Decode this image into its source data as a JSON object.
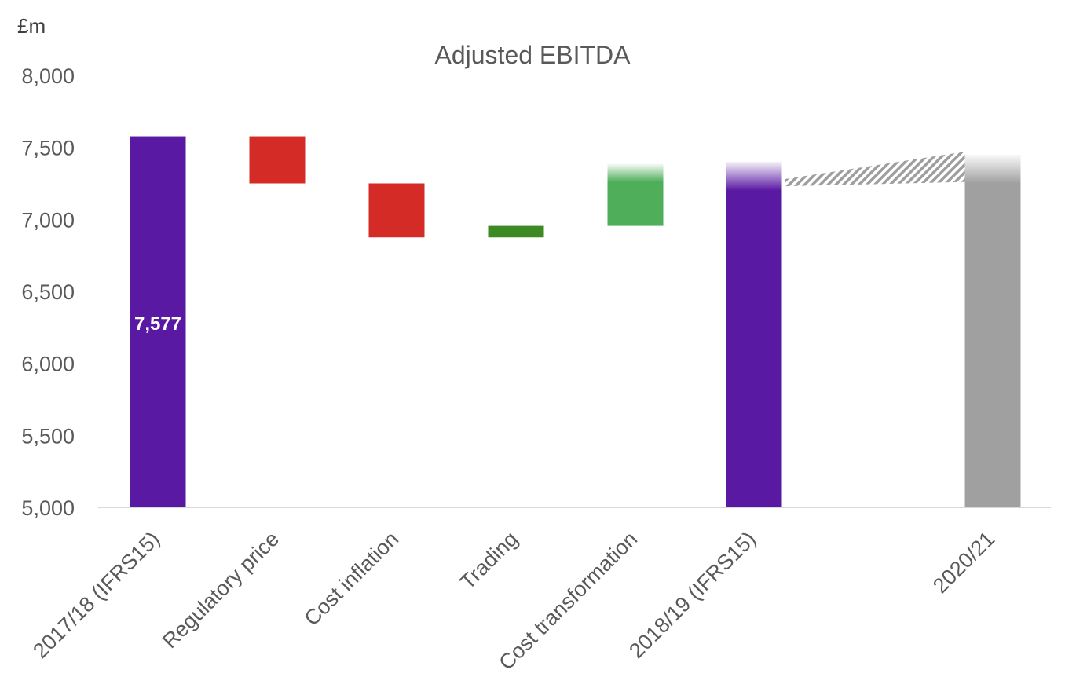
{
  "chart_data": {
    "type": "bar",
    "subtype": "waterfall",
    "title": "Adjusted EBITDA",
    "unit_label": "£m",
    "ylim": [
      5000,
      8000
    ],
    "yticks": [
      5000,
      5500,
      6000,
      6500,
      7000,
      7500,
      8000
    ],
    "ytick_labels": [
      "5,000",
      "5,500",
      "6,000",
      "6,500",
      "7,000",
      "7,500",
      "8,000"
    ],
    "grid": false,
    "bars": [
      {
        "category": "2017/18 (IFRS15)",
        "kind": "total",
        "low": 5000,
        "high": 7577,
        "color": "#5a19a2",
        "label": "7,577"
      },
      {
        "category": "Regulatory price",
        "kind": "decrease",
        "low": 7250,
        "high": 7577,
        "color": "#d52b27"
      },
      {
        "category": "Cost inflation",
        "kind": "decrease",
        "low": 6875,
        "high": 7250,
        "color": "#d52b27"
      },
      {
        "category": "Trading",
        "kind": "increase",
        "low": 6875,
        "high": 6955,
        "color": "#3d8a25"
      },
      {
        "category": "Cost transformation",
        "kind": "increase",
        "low": 6955,
        "high": 7385,
        "color": "#4fae5a",
        "faded_top": 7260
      },
      {
        "category": "2018/19 (IFRS15)",
        "kind": "total",
        "low": 5000,
        "high": 7400,
        "color": "#5a19a2",
        "faded_top": 7200
      },
      {
        "category": "2020/21",
        "kind": "total",
        "low": 5000,
        "high": 7450,
        "color": "#a0a0a0",
        "faded_top": 7250
      }
    ],
    "projection_band": {
      "from_category": "2018/19 (IFRS15)",
      "to_category": "2020/21",
      "low_start": 7230,
      "high_start": 7280,
      "low_end": 7260,
      "high_end": 7470,
      "color": "#b5b5b5"
    }
  }
}
